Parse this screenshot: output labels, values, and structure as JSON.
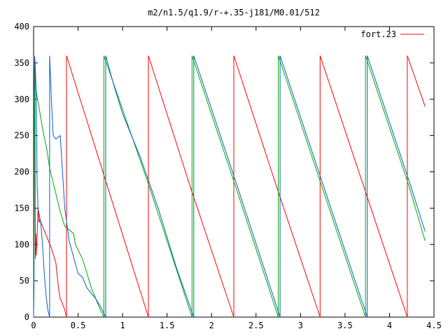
{
  "chart_data": {
    "type": "line",
    "title": "m2/n1.5/q1.9/r-+.35-j181/M0.01/512",
    "xlabel": "",
    "ylabel": "",
    "xlim": [
      0,
      4.5
    ],
    "ylim": [
      0,
      400
    ],
    "x_ticks": [
      "0",
      "0.5",
      "1",
      "1.5",
      "2",
      "2.5",
      "3",
      "3.5",
      "4",
      "4.5"
    ],
    "y_ticks": [
      "0",
      "50",
      "100",
      "150",
      "200",
      "250",
      "300",
      "350",
      "400"
    ],
    "grid": false,
    "legend": {
      "placement": "top-right",
      "entries": [
        "fort.23"
      ]
    },
    "series": [
      {
        "name": "fort.23",
        "color": "#ff0000",
        "x": [
          0.0,
          0.005,
          0.01,
          0.015,
          0.02,
          0.025,
          0.03,
          0.035,
          0.04,
          0.05,
          0.06,
          0.07,
          0.1,
          0.15,
          0.2,
          0.25,
          0.28,
          0.3,
          0.32,
          0.35,
          0.37,
          0.37,
          0.83,
          1.29,
          1.29,
          1.76,
          2.25,
          2.25,
          2.73,
          3.22,
          3.22,
          3.71,
          4.2,
          4.2,
          4.4
        ],
        "y": [
          360,
          325,
          340,
          325,
          80,
          115,
          85,
          100,
          115,
          150,
          130,
          135,
          125,
          110,
          95,
          75,
          40,
          25,
          20,
          10,
          0,
          360,
          180,
          0,
          360,
          180,
          0,
          360,
          180,
          0,
          360,
          180,
          0,
          360,
          290
        ]
      },
      {
        "name": "",
        "color": "#00aa00",
        "x": [
          0.0,
          0.005,
          0.008,
          0.015,
          0.02,
          0.03,
          0.06,
          0.1,
          0.15,
          0.18,
          0.25,
          0.3,
          0.35,
          0.45,
          0.47,
          0.55,
          0.6,
          0.65,
          0.7,
          0.75,
          0.79,
          0.79,
          1.3,
          1.78,
          1.78,
          2.27,
          2.75,
          2.75,
          3.24,
          3.73,
          3.73,
          4.22,
          4.4
        ],
        "y": [
          0,
          40,
          160,
          350,
          340,
          310,
          290,
          260,
          230,
          205,
          170,
          145,
          125,
          115,
          100,
          80,
          60,
          40,
          25,
          10,
          0,
          360,
          180,
          0,
          360,
          180,
          0,
          360,
          180,
          0,
          360,
          180,
          105
        ]
      },
      {
        "name": "",
        "color": "#0060d0",
        "x": [
          0.0,
          0.005,
          0.01,
          0.015,
          0.02,
          0.03,
          0.04,
          0.05,
          0.08,
          0.1,
          0.12,
          0.14,
          0.16,
          0.18,
          0.18,
          0.2,
          0.22,
          0.25,
          0.3,
          0.35,
          0.4,
          0.5,
          0.55,
          0.6,
          0.7,
          0.75,
          0.81,
          0.81,
          0.9,
          1.0,
          1.1,
          1.2,
          1.3,
          1.4,
          1.5,
          1.6,
          1.7,
          1.8,
          1.8,
          2.29,
          2.77,
          2.77,
          3.26,
          3.75,
          3.75,
          4.24,
          4.4
        ],
        "y": [
          0,
          300,
          360,
          355,
          340,
          300,
          180,
          150,
          130,
          100,
          60,
          30,
          10,
          0,
          360,
          300,
          250,
          245,
          250,
          150,
          105,
          60,
          55,
          40,
          25,
          15,
          0,
          360,
          320,
          280,
          250,
          220,
          185,
          150,
          110,
          70,
          35,
          0,
          360,
          180,
          0,
          360,
          180,
          0,
          360,
          180,
          118
        ]
      }
    ]
  }
}
